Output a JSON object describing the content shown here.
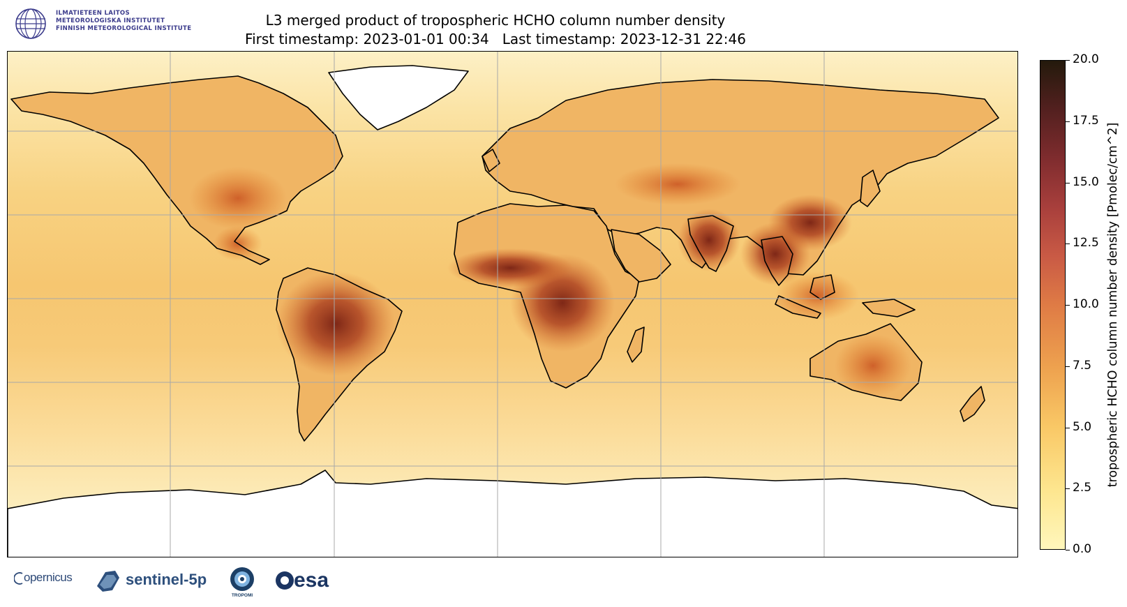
{
  "header": {
    "fmi_logo": {
      "icon": "fmi-globe-logo",
      "lines": [
        "ILMATIETEEN LAITOS",
        "METEOROLOGISKA INSTITUTET",
        "FINNISH METEOROLOGICAL INSTITUTE"
      ]
    },
    "title_line1": "L3 merged product of tropospheric HCHO column number density",
    "title_line2": "First timestamp: 2023-01-01 00:34   Last timestamp: 2023-12-31 22:46"
  },
  "map": {
    "projection": "equirectangular",
    "grid": true,
    "colormap": "YlOrBr-like (pale yellow to dark brown)",
    "hotspots": [
      "Central Africa",
      "Amazon",
      "India",
      "South-East Asia",
      "Southern China",
      "Eastern United States"
    ],
    "no_data_regions": [
      "Greenland",
      "Antarctica"
    ]
  },
  "colorbar": {
    "label": "tropospheric HCHO column number density [Pmolec/cm^2]",
    "min": 0.0,
    "max": 20.0,
    "ticks": [
      "0.0",
      "2.5",
      "5.0",
      "7.5",
      "10.0",
      "12.5",
      "15.0",
      "17.5",
      "20.0"
    ],
    "colors": [
      "#fff7bc",
      "#f9c866",
      "#df7b45",
      "#a83f3c",
      "#53201f",
      "#241a0c"
    ]
  },
  "footer_logos": {
    "copernicus": "opernicus",
    "sentinel": "sentinel-5p",
    "tropomi": "TROPOMI",
    "esa": "esa"
  }
}
